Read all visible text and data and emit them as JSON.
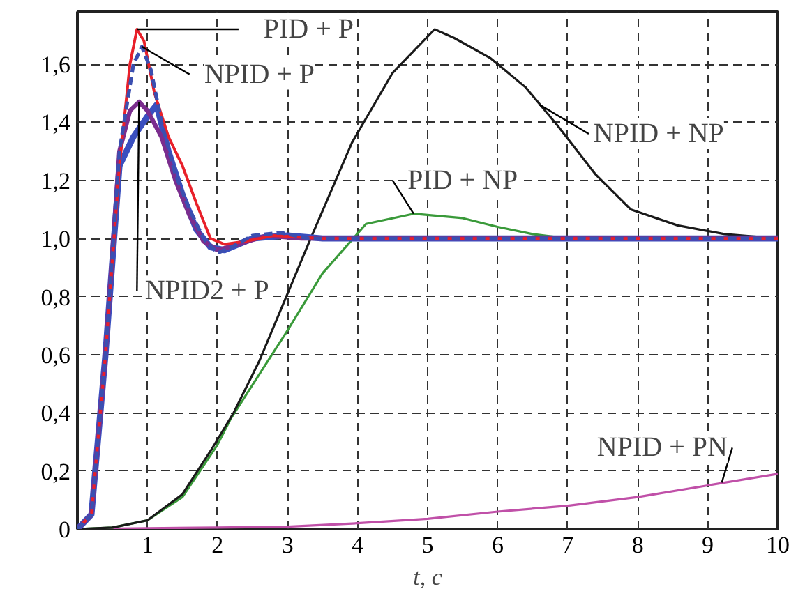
{
  "chart_data": {
    "type": "line",
    "xlabel": "t, с",
    "xlim": [
      0,
      10
    ],
    "ylim": [
      0,
      1.78
    ],
    "xticks": [
      1,
      2,
      3,
      4,
      5,
      6,
      7,
      8,
      9,
      10
    ],
    "yticks": [
      {
        "value": 0,
        "label": "0"
      },
      {
        "value": 0.2,
        "label": "0,2"
      },
      {
        "value": 0.4,
        "label": "0,4"
      },
      {
        "value": 0.6,
        "label": "0,6"
      },
      {
        "value": 0.8,
        "label": "0,8"
      },
      {
        "value": 1.0,
        "label": "1,0"
      },
      {
        "value": 1.2,
        "label": "1,2"
      },
      {
        "value": 1.4,
        "label": "1,4"
      },
      {
        "value": 1.6,
        "label": "1,6"
      }
    ],
    "grid": true,
    "line_style": "solid",
    "series": [
      {
        "color": "#c050a8",
        "x": [
          0,
          1,
          2,
          3,
          4,
          5,
          6,
          7,
          8,
          9,
          10
        ],
        "values": [
          0,
          0.003,
          0.005,
          0.008,
          0.02,
          0.035,
          0.06,
          0.08,
          0.11,
          0.15,
          0.19
        ]
      },
      {
        "color": "#3a9a3a",
        "x": [
          0,
          0.5,
          1,
          1.5,
          2,
          2.19,
          2.99,
          3.5,
          4.12,
          4.8,
          5.5,
          6,
          6.5,
          7,
          8,
          10
        ],
        "values": [
          0,
          0.005,
          0.03,
          0.11,
          0.29,
          0.38,
          0.68,
          0.88,
          1.05,
          1.085,
          1.07,
          1.04,
          1.015,
          1.0,
          0.995,
          1.0
        ]
      },
      {
        "color": "#1a1a1a",
        "x": [
          0,
          0.5,
          1,
          1.5,
          1.93,
          2.23,
          2.6,
          3.33,
          3.92,
          4.5,
          5.1,
          5.38,
          5.9,
          6.4,
          6.85,
          7.4,
          7.9,
          8.57,
          9.24,
          10
        ],
        "values": [
          0,
          0.005,
          0.03,
          0.12,
          0.28,
          0.4,
          0.58,
          1.0,
          1.33,
          1.57,
          1.72,
          1.69,
          1.62,
          1.52,
          1.39,
          1.22,
          1.1,
          1.045,
          1.015,
          1.0
        ]
      },
      {
        "color": "#3a4fbf",
        "x": [
          0,
          0.2,
          0.4,
          0.6,
          0.8,
          1.0,
          1.13,
          1.3,
          1.5,
          1.7,
          1.9,
          2.1,
          2.5,
          3,
          3.5,
          10
        ],
        "values": [
          0,
          0.05,
          0.6,
          1.25,
          1.35,
          1.42,
          1.46,
          1.3,
          1.15,
          1.03,
          0.97,
          0.96,
          1.0,
          1.01,
          1.0,
          1.0
        ]
      },
      {
        "color": "#7b2d8e",
        "x": [
          0,
          0.2,
          0.4,
          0.6,
          0.75,
          0.88,
          1.0,
          1.2,
          1.4,
          1.6,
          1.8,
          2.0,
          2.3,
          2.7,
          3.2,
          10
        ],
        "values": [
          0,
          0.05,
          0.6,
          1.3,
          1.44,
          1.47,
          1.44,
          1.35,
          1.2,
          1.08,
          0.99,
          0.96,
          0.98,
          1.01,
          1.0,
          1.0
        ]
      },
      {
        "color": "#e8202a",
        "x": [
          0,
          0.2,
          0.4,
          0.6,
          0.75,
          0.85,
          0.95,
          1.1,
          1.3,
          1.5,
          1.7,
          1.9,
          2.1,
          2.4,
          2.8,
          3.5,
          10
        ],
        "values": [
          0,
          0.05,
          0.6,
          1.25,
          1.6,
          1.72,
          1.68,
          1.5,
          1.35,
          1.25,
          1.12,
          1.0,
          0.98,
          0.99,
          1.01,
          1.0,
          1.0
        ]
      },
      {
        "color": "#3b4fb0",
        "line_style": "dashed",
        "x": [
          0,
          0.2,
          0.4,
          0.6,
          0.8,
          0.92,
          1.05,
          1.2,
          1.4,
          1.6,
          1.8,
          2.0,
          2.2,
          2.5,
          2.9,
          3.3,
          10
        ],
        "values": [
          0,
          0.05,
          0.6,
          1.3,
          1.6,
          1.66,
          1.58,
          1.4,
          1.22,
          1.1,
          1.0,
          0.95,
          0.97,
          1.01,
          1.02,
          1.0,
          1.0
        ]
      }
    ],
    "annotations": [
      {
        "text": "PID + P",
        "x": 0.85,
        "y": 1.72
      },
      {
        "text": "NPID + P",
        "x": 0.92,
        "y": 1.66
      },
      {
        "text": "NPID2 + P",
        "x": 0.88,
        "y": 1.47
      },
      {
        "text": "NPID + NP",
        "x": 6.6,
        "y": 1.46
      },
      {
        "text": "PID + NP",
        "x": 4.8,
        "y": 1.085
      },
      {
        "text": "NPID + PN",
        "x": 9.2,
        "y": 0.16
      }
    ]
  }
}
